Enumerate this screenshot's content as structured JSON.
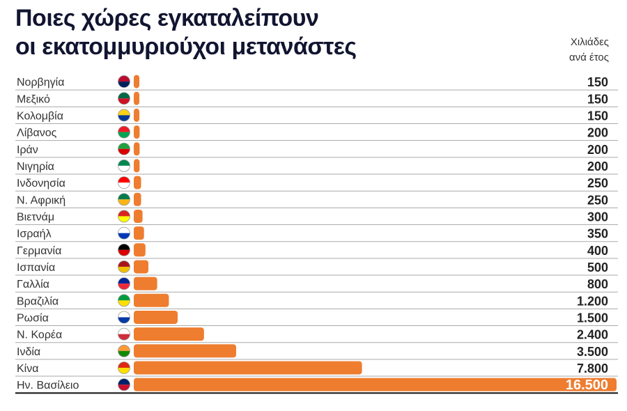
{
  "chart_data": {
    "type": "bar",
    "orientation": "horizontal",
    "title": "Ποιες χώρες εγκαταλείπουν οι εκατομμυριούχοι μετανάστες",
    "title_lines": [
      "Ποιες χώρες εγκαταλείπουν",
      "οι εκατομμυριούχοι μετανάστες"
    ],
    "unit_lines": [
      "Χιλιάδες",
      "ανά έτος"
    ],
    "categories": [
      "Νορβηγία",
      "Μεξικό",
      "Κολομβία",
      "Λίβανος",
      "Ιράν",
      "Νιγηρία",
      "Ινδονησία",
      "Ν. Αφρική",
      "Βιετνάμ",
      "Ισραήλ",
      "Γερμανία",
      "Ισπανία",
      "Γαλλία",
      "Βραζιλία",
      "Ρωσία",
      "Ν. Κορέα",
      "Ινδία",
      "Κίνα",
      "Ην. Βασίλειο"
    ],
    "values": [
      150,
      150,
      150,
      200,
      200,
      200,
      250,
      250,
      300,
      350,
      400,
      500,
      800,
      1200,
      1500,
      2400,
      3500,
      7800,
      16500
    ],
    "value_labels": [
      "150",
      "150",
      "150",
      "200",
      "200",
      "200",
      "250",
      "250",
      "300",
      "350",
      "400",
      "500",
      "800",
      "1.200",
      "1.500",
      "2.400",
      "3.500",
      "7.800",
      "16.500"
    ],
    "flags": [
      "norway-flag-icon",
      "mexico-flag-icon",
      "colombia-flag-icon",
      "lebanon-flag-icon",
      "iran-flag-icon",
      "nigeria-flag-icon",
      "indonesia-flag-icon",
      "south-africa-flag-icon",
      "vietnam-flag-icon",
      "israel-flag-icon",
      "germany-flag-icon",
      "spain-flag-icon",
      "france-flag-icon",
      "brazil-flag-icon",
      "russia-flag-icon",
      "south-korea-flag-icon",
      "india-flag-icon",
      "china-flag-icon",
      "uk-flag-icon"
    ],
    "flag_colors": [
      [
        "#ba0c2f",
        "#00205b"
      ],
      [
        "#006847",
        "#ce1126"
      ],
      [
        "#fcd116",
        "#003893"
      ],
      [
        "#ed1c24",
        "#00a651"
      ],
      [
        "#239f40",
        "#da0000"
      ],
      [
        "#008751",
        "#ffffff"
      ],
      [
        "#ff0000",
        "#ffffff"
      ],
      [
        "#007a4d",
        "#ffb612"
      ],
      [
        "#da251d",
        "#ffff00"
      ],
      [
        "#ffffff",
        "#0038b8"
      ],
      [
        "#000000",
        "#dd0000"
      ],
      [
        "#aa151b",
        "#f1bf00"
      ],
      [
        "#002395",
        "#ed2939"
      ],
      [
        "#009c3b",
        "#ffdf00"
      ],
      [
        "#ffffff",
        "#0039a6"
      ],
      [
        "#ffffff",
        "#cd2e3a"
      ],
      [
        "#ff9933",
        "#138808"
      ],
      [
        "#de2910",
        "#ffde00"
      ],
      [
        "#012169",
        "#c8102e"
      ]
    ],
    "bar_color": "#ee7d30",
    "xlim": [
      0,
      16500
    ]
  }
}
